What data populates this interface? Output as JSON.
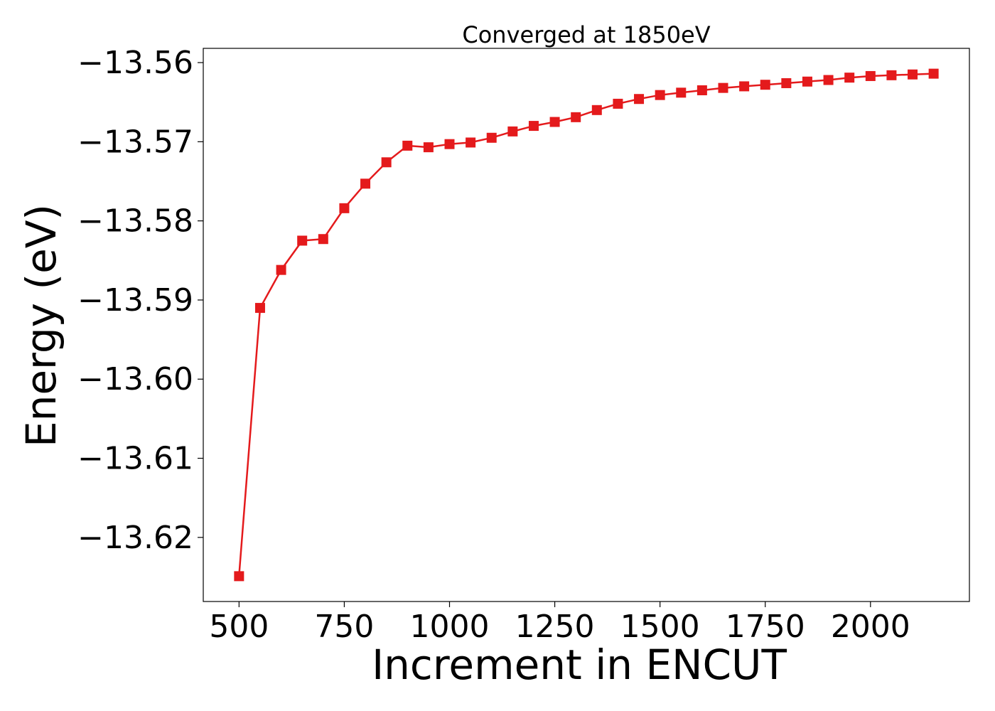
{
  "chart_data": {
    "type": "line",
    "title": "Converged at 1850eV",
    "xlabel": "Increment in ENCUT",
    "ylabel": "Energy (eV)",
    "xlim": [
      415,
      2235
    ],
    "ylim": [
      -13.6281,
      -13.5582
    ],
    "xticks": [
      500,
      750,
      1000,
      1250,
      1500,
      1750,
      2000
    ],
    "xtick_labels": [
      "500",
      "750",
      "1000",
      "1250",
      "1500",
      "1750",
      "2000"
    ],
    "yticks": [
      -13.56,
      -13.57,
      -13.58,
      -13.59,
      -13.6,
      -13.61,
      -13.62
    ],
    "ytick_labels": [
      "−13.56",
      "−13.57",
      "−13.58",
      "−13.59",
      "−13.60",
      "−13.61",
      "−13.62"
    ],
    "grid": false,
    "series": [
      {
        "color": "#e41a1c",
        "marker": "square",
        "x": [
          500,
          550,
          600,
          650,
          700,
          750,
          800,
          850,
          900,
          950,
          1000,
          1050,
          1100,
          1150,
          1200,
          1250,
          1300,
          1350,
          1400,
          1450,
          1500,
          1550,
          1600,
          1650,
          1700,
          1750,
          1800,
          1850,
          1900,
          1950,
          2000,
          2050,
          2100,
          2150
        ],
        "y": [
          -13.6249,
          -13.591,
          -13.5862,
          -13.5825,
          -13.5823,
          -13.5784,
          -13.5753,
          -13.5726,
          -13.5705,
          -13.5707,
          -13.5703,
          -13.5701,
          -13.5695,
          -13.5687,
          -13.568,
          -13.5675,
          -13.5669,
          -13.566,
          -13.5652,
          -13.5646,
          -13.5641,
          -13.5638,
          -13.5635,
          -13.5632,
          -13.563,
          -13.5628,
          -13.5626,
          -13.5624,
          -13.5622,
          -13.5619,
          -13.5617,
          -13.5616,
          -13.5615,
          -13.5614
        ]
      }
    ]
  }
}
